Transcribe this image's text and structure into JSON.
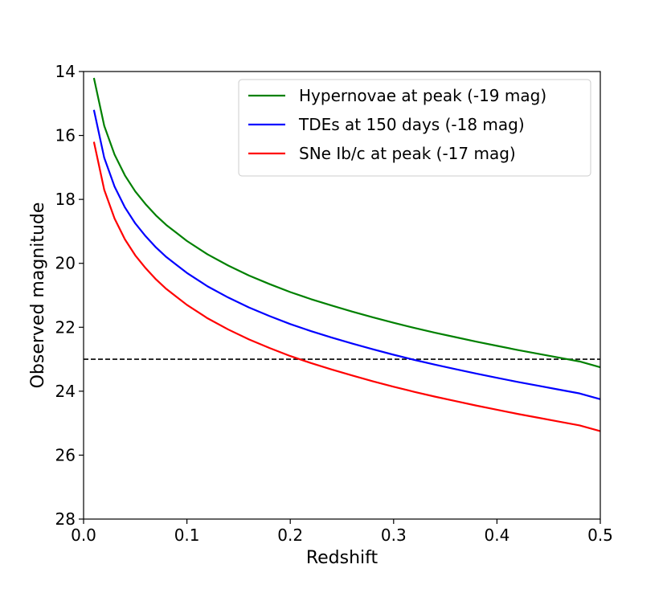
{
  "chart_data": {
    "type": "line",
    "xlabel": "Redshift",
    "ylabel": "Observed magnitude",
    "xlim": [
      0.0,
      0.5
    ],
    "ylim": [
      14,
      28
    ],
    "y_inverted": true,
    "xticks": [
      0.0,
      0.1,
      0.2,
      0.3,
      0.4,
      0.5
    ],
    "xtick_labels": [
      "0.0",
      "0.1",
      "0.2",
      "0.3",
      "0.4",
      "0.5"
    ],
    "yticks": [
      14,
      16,
      18,
      20,
      22,
      24,
      26,
      28
    ],
    "ytick_labels": [
      "14",
      "16",
      "18",
      "20",
      "22",
      "24",
      "26",
      "28"
    ],
    "grid": false,
    "legend_position": "top-right",
    "reference_line": {
      "y": 23,
      "style": "dashed",
      "color": "#000000"
    },
    "x": [
      0.01,
      0.02,
      0.03,
      0.04,
      0.05,
      0.06,
      0.07,
      0.08,
      0.09,
      0.1,
      0.12,
      0.14,
      0.16,
      0.18,
      0.2,
      0.22,
      0.24,
      0.26,
      0.28,
      0.3,
      0.32,
      0.34,
      0.36,
      0.38,
      0.4,
      0.42,
      0.44,
      0.46,
      0.48,
      0.5
    ],
    "series": [
      {
        "name": "Hypernovae at peak (-19 mag)",
        "color": "#008000",
        "values": [
          14.2,
          15.7,
          16.6,
          17.25,
          17.75,
          18.15,
          18.5,
          18.8,
          19.05,
          19.3,
          19.72,
          20.07,
          20.38,
          20.65,
          20.9,
          21.12,
          21.32,
          21.51,
          21.69,
          21.86,
          22.02,
          22.17,
          22.31,
          22.45,
          22.58,
          22.71,
          22.83,
          22.95,
          23.07,
          23.25
        ]
      },
      {
        "name": "TDEs at 150 days (-18 mag)",
        "color": "#0000ff",
        "values": [
          15.2,
          16.7,
          17.6,
          18.25,
          18.75,
          19.15,
          19.5,
          19.8,
          20.05,
          20.3,
          20.72,
          21.07,
          21.38,
          21.65,
          21.9,
          22.12,
          22.32,
          22.51,
          22.69,
          22.86,
          23.02,
          23.17,
          23.31,
          23.45,
          23.58,
          23.71,
          23.83,
          23.95,
          24.07,
          24.25
        ]
      },
      {
        "name": "SNe Ib/c at peak (-17 mag)",
        "color": "#ff0000",
        "values": [
          16.2,
          17.7,
          18.6,
          19.25,
          19.75,
          20.15,
          20.5,
          20.8,
          21.05,
          21.3,
          21.72,
          22.07,
          22.38,
          22.65,
          22.9,
          23.12,
          23.32,
          23.51,
          23.69,
          23.86,
          24.02,
          24.17,
          24.31,
          24.45,
          24.58,
          24.71,
          24.83,
          24.95,
          25.07,
          25.25
        ]
      }
    ]
  }
}
